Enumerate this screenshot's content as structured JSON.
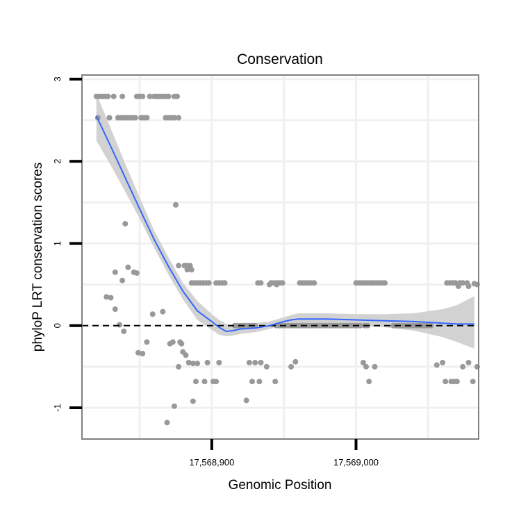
{
  "chart_data": {
    "type": "scatter",
    "title": "Conservation",
    "xlabel": "Genomic Position",
    "ylabel": "phyloP LRT conservation scores",
    "xlim": [
      17568810,
      17569085
    ],
    "ylim": [
      -1.38,
      3.05
    ],
    "x_ticks": [
      {
        "value": 17568900,
        "label": "17,568,900"
      },
      {
        "value": 17569000,
        "label": "17,569,000"
      }
    ],
    "y_ticks": [
      {
        "value": -1,
        "label": "-1"
      },
      {
        "value": 0,
        "label": "0"
      },
      {
        "value": 1,
        "label": "1"
      },
      {
        "value": 2,
        "label": "2"
      },
      {
        "value": 3,
        "label": "3"
      }
    ],
    "x_minor_gridlines": [
      17568850,
      17568950,
      17569050
    ],
    "y_minor_gridlines": [
      -0.5,
      0.5,
      1.5,
      2.5
    ],
    "reference_line": {
      "y": 0,
      "style": "dashed"
    },
    "colors": {
      "points": "#999999",
      "smooth": "#3366ff",
      "ribbon": "#d2d2d2",
      "grid": "#f0f0f0",
      "border": "#808080"
    },
    "points": [
      [
        17568820,
        2.79
      ],
      [
        17568822,
        2.79
      ],
      [
        17568824,
        2.79
      ],
      [
        17568826,
        2.79
      ],
      [
        17568828,
        2.79
      ],
      [
        17568832,
        2.79
      ],
      [
        17568838,
        2.79
      ],
      [
        17568848,
        2.79
      ],
      [
        17568850,
        2.79
      ],
      [
        17568852,
        2.79
      ],
      [
        17568857,
        2.79
      ],
      [
        17568860,
        2.79
      ],
      [
        17568862,
        2.79
      ],
      [
        17568864,
        2.79
      ],
      [
        17568866,
        2.79
      ],
      [
        17568868,
        2.79
      ],
      [
        17568870,
        2.79
      ],
      [
        17568874,
        2.79
      ],
      [
        17568876,
        2.79
      ],
      [
        17568821,
        2.53
      ],
      [
        17568829,
        2.53
      ],
      [
        17568835,
        2.53
      ],
      [
        17568837,
        2.53
      ],
      [
        17568839,
        2.53
      ],
      [
        17568841,
        2.53
      ],
      [
        17568843,
        2.53
      ],
      [
        17568845,
        2.53
      ],
      [
        17568847,
        2.53
      ],
      [
        17568851,
        2.53
      ],
      [
        17568853,
        2.53
      ],
      [
        17568855,
        2.53
      ],
      [
        17568868,
        2.53
      ],
      [
        17568870,
        2.53
      ],
      [
        17568872,
        2.53
      ],
      [
        17568874,
        2.53
      ],
      [
        17568877,
        2.53
      ],
      [
        17568875,
        1.47
      ],
      [
        17568840,
        1.24
      ],
      [
        17568842,
        0.71
      ],
      [
        17568846,
        0.65
      ],
      [
        17568848,
        0.64
      ],
      [
        17568877,
        0.73
      ],
      [
        17568881,
        0.73
      ],
      [
        17568883,
        0.73
      ],
      [
        17568885,
        0.73
      ],
      [
        17568883,
        0.68
      ],
      [
        17568886,
        0.68
      ],
      [
        17568833,
        0.65
      ],
      [
        17568886,
        0.52
      ],
      [
        17568888,
        0.52
      ],
      [
        17568890,
        0.52
      ],
      [
        17568892,
        0.52
      ],
      [
        17568894,
        0.52
      ],
      [
        17568896,
        0.52
      ],
      [
        17568898,
        0.52
      ],
      [
        17568903,
        0.52
      ],
      [
        17568905,
        0.52
      ],
      [
        17568907,
        0.52
      ],
      [
        17568909,
        0.52
      ],
      [
        17568932,
        0.52
      ],
      [
        17568934,
        0.52
      ],
      [
        17568941,
        0.52
      ],
      [
        17568943,
        0.52
      ],
      [
        17568945,
        0.52
      ],
      [
        17568947,
        0.52
      ],
      [
        17568949,
        0.52
      ],
      [
        17568940,
        0.5
      ],
      [
        17568945,
        0.5
      ],
      [
        17568961,
        0.52
      ],
      [
        17568963,
        0.52
      ],
      [
        17568965,
        0.52
      ],
      [
        17568967,
        0.52
      ],
      [
        17568969,
        0.52
      ],
      [
        17568971,
        0.52
      ],
      [
        17569000,
        0.52
      ],
      [
        17569002,
        0.52
      ],
      [
        17569004,
        0.52
      ],
      [
        17569006,
        0.52
      ],
      [
        17569008,
        0.52
      ],
      [
        17569010,
        0.52
      ],
      [
        17569012,
        0.52
      ],
      [
        17569014,
        0.52
      ],
      [
        17569016,
        0.52
      ],
      [
        17569018,
        0.52
      ],
      [
        17569020,
        0.52
      ],
      [
        17569063,
        0.52
      ],
      [
        17569065,
        0.52
      ],
      [
        17569067,
        0.52
      ],
      [
        17569069,
        0.52
      ],
      [
        17569072,
        0.52
      ],
      [
        17569074,
        0.52
      ],
      [
        17569077,
        0.52
      ],
      [
        17569082,
        0.51
      ],
      [
        17569084,
        0.5
      ],
      [
        17569071,
        0.48
      ],
      [
        17569078,
        0.48
      ],
      [
        17568838,
        0.55
      ],
      [
        17568827,
        0.35
      ],
      [
        17568830,
        0.34
      ],
      [
        17568833,
        0.2
      ],
      [
        17568836,
        0.01
      ],
      [
        17568839,
        -0.07
      ],
      [
        17568859,
        0.14
      ],
      [
        17568866,
        0.17
      ],
      [
        17568855,
        -0.2
      ],
      [
        17568849,
        -0.33
      ],
      [
        17568852,
        -0.34
      ],
      [
        17568871,
        -0.22
      ],
      [
        17568873,
        -0.2
      ],
      [
        17568878,
        -0.2
      ],
      [
        17568879,
        -0.22
      ],
      [
        17568880,
        -0.32
      ],
      [
        17568882,
        -0.36
      ],
      [
        17568884,
        -0.45
      ],
      [
        17568887,
        -0.46
      ],
      [
        17568890,
        -0.46
      ],
      [
        17568897,
        -0.45
      ],
      [
        17568905,
        -0.45
      ],
      [
        17568877,
        -0.5
      ],
      [
        17568889,
        -0.68
      ],
      [
        17568895,
        -0.68
      ],
      [
        17568901,
        -0.68
      ],
      [
        17568903,
        -0.68
      ],
      [
        17568887,
        -0.92
      ],
      [
        17568874,
        -0.98
      ],
      [
        17568869,
        -1.18
      ],
      [
        17568926,
        -0.45
      ],
      [
        17568930,
        -0.45
      ],
      [
        17568934,
        -0.45
      ],
      [
        17568938,
        -0.5
      ],
      [
        17568928,
        -0.68
      ],
      [
        17568933,
        -0.68
      ],
      [
        17568944,
        -0.68
      ],
      [
        17568924,
        -0.91
      ],
      [
        17568958,
        -0.44
      ],
      [
        17568955,
        -0.5
      ],
      [
        17569005,
        -0.45
      ],
      [
        17569007,
        -0.5
      ],
      [
        17569009,
        -0.68
      ],
      [
        17569013,
        -0.5
      ],
      [
        17569056,
        -0.48
      ],
      [
        17569060,
        -0.45
      ],
      [
        17569062,
        -0.68
      ],
      [
        17569066,
        -0.68
      ],
      [
        17569068,
        -0.68
      ],
      [
        17569070,
        -0.68
      ],
      [
        17569074,
        -0.5
      ],
      [
        17569078,
        -0.45
      ],
      [
        17569081,
        -0.68
      ],
      [
        17569084,
        -0.5
      ],
      [
        17568916,
        0.0
      ],
      [
        17568918,
        0.0
      ],
      [
        17568920,
        0.0
      ],
      [
        17568922,
        0.0
      ],
      [
        17568924,
        0.0
      ],
      [
        17568926,
        0.0
      ],
      [
        17568928,
        0.0
      ],
      [
        17568930,
        0.0
      ],
      [
        17568945,
        0.0
      ],
      [
        17568947,
        0.0
      ],
      [
        17568949,
        0.0
      ],
      [
        17568951,
        0.0
      ],
      [
        17568953,
        0.0
      ],
      [
        17568955,
        0.0
      ],
      [
        17568957,
        0.0
      ],
      [
        17568959,
        0.0
      ],
      [
        17568961,
        0.0
      ],
      [
        17568963,
        0.0
      ],
      [
        17568965,
        0.0
      ],
      [
        17568967,
        0.0
      ],
      [
        17568969,
        0.0
      ],
      [
        17568971,
        0.0
      ],
      [
        17568973,
        0.0
      ],
      [
        17568975,
        0.0
      ],
      [
        17568977,
        0.0
      ],
      [
        17568979,
        0.0
      ],
      [
        17568981,
        0.0
      ],
      [
        17568983,
        0.0
      ],
      [
        17568985,
        0.0
      ],
      [
        17568987,
        0.0
      ],
      [
        17568989,
        0.0
      ],
      [
        17568991,
        0.0
      ],
      [
        17568993,
        0.0
      ],
      [
        17568995,
        0.0
      ],
      [
        17568997,
        0.0
      ],
      [
        17568999,
        0.0
      ],
      [
        17569001,
        0.0
      ],
      [
        17569003,
        0.0
      ],
      [
        17569006,
        0.0
      ],
      [
        17569008,
        0.0
      ],
      [
        17569026,
        0.0
      ],
      [
        17569028,
        0.0
      ],
      [
        17569030,
        0.0
      ],
      [
        17569032,
        0.0
      ],
      [
        17569034,
        0.0
      ],
      [
        17569036,
        0.0
      ],
      [
        17569038,
        0.0
      ],
      [
        17569040,
        0.0
      ],
      [
        17569042,
        0.0
      ],
      [
        17569044,
        0.0
      ],
      [
        17569046,
        0.0
      ],
      [
        17569048,
        0.0
      ],
      [
        17569050,
        0.0
      ],
      [
        17569052,
        0.0
      ]
    ],
    "smooth": [
      [
        17568820,
        2.55
      ],
      [
        17568830,
        2.18
      ],
      [
        17568840,
        1.8
      ],
      [
        17568850,
        1.42
      ],
      [
        17568860,
        1.05
      ],
      [
        17568870,
        0.72
      ],
      [
        17568880,
        0.42
      ],
      [
        17568890,
        0.18
      ],
      [
        17568900,
        0.05
      ],
      [
        17568905,
        -0.02
      ],
      [
        17568910,
        -0.07
      ],
      [
        17568915,
        -0.06
      ],
      [
        17568920,
        -0.04
      ],
      [
        17568930,
        -0.03
      ],
      [
        17568940,
        0.0
      ],
      [
        17568950,
        0.05
      ],
      [
        17568955,
        0.07
      ],
      [
        17568960,
        0.08
      ],
      [
        17568980,
        0.08
      ],
      [
        17569000,
        0.07
      ],
      [
        17569020,
        0.06
      ],
      [
        17569040,
        0.05
      ],
      [
        17569060,
        0.03
      ],
      [
        17569070,
        0.02
      ],
      [
        17569082,
        0.02
      ]
    ],
    "ribbon_lower": [
      [
        17568820,
        2.25
      ],
      [
        17568830,
        1.95
      ],
      [
        17568840,
        1.63
      ],
      [
        17568850,
        1.3
      ],
      [
        17568860,
        0.95
      ],
      [
        17568870,
        0.62
      ],
      [
        17568880,
        0.32
      ],
      [
        17568890,
        0.07
      ],
      [
        17568900,
        -0.05
      ],
      [
        17568905,
        -0.11
      ],
      [
        17568910,
        -0.13
      ],
      [
        17568915,
        -0.12
      ],
      [
        17568920,
        -0.1
      ],
      [
        17568930,
        -0.08
      ],
      [
        17568940,
        -0.04
      ],
      [
        17568950,
        0.0
      ],
      [
        17568955,
        0.01
      ],
      [
        17568960,
        0.02
      ],
      [
        17568980,
        0.02
      ],
      [
        17569000,
        0.0
      ],
      [
        17569020,
        -0.02
      ],
      [
        17569040,
        -0.06
      ],
      [
        17569060,
        -0.14
      ],
      [
        17569070,
        -0.2
      ],
      [
        17569082,
        -0.28
      ]
    ],
    "ribbon_upper": [
      [
        17568820,
        2.82
      ],
      [
        17568830,
        2.4
      ],
      [
        17568840,
        1.97
      ],
      [
        17568850,
        1.56
      ],
      [
        17568860,
        1.16
      ],
      [
        17568870,
        0.83
      ],
      [
        17568880,
        0.52
      ],
      [
        17568890,
        0.3
      ],
      [
        17568900,
        0.14
      ],
      [
        17568905,
        0.07
      ],
      [
        17568910,
        0.02
      ],
      [
        17568915,
        0.01
      ],
      [
        17568920,
        0.02
      ],
      [
        17568930,
        0.03
      ],
      [
        17568940,
        0.05
      ],
      [
        17568950,
        0.1
      ],
      [
        17568955,
        0.13
      ],
      [
        17568960,
        0.15
      ],
      [
        17568980,
        0.15
      ],
      [
        17569000,
        0.14
      ],
      [
        17569020,
        0.14
      ],
      [
        17569040,
        0.15
      ],
      [
        17569060,
        0.2
      ],
      [
        17569070,
        0.25
      ],
      [
        17569082,
        0.36
      ]
    ]
  }
}
